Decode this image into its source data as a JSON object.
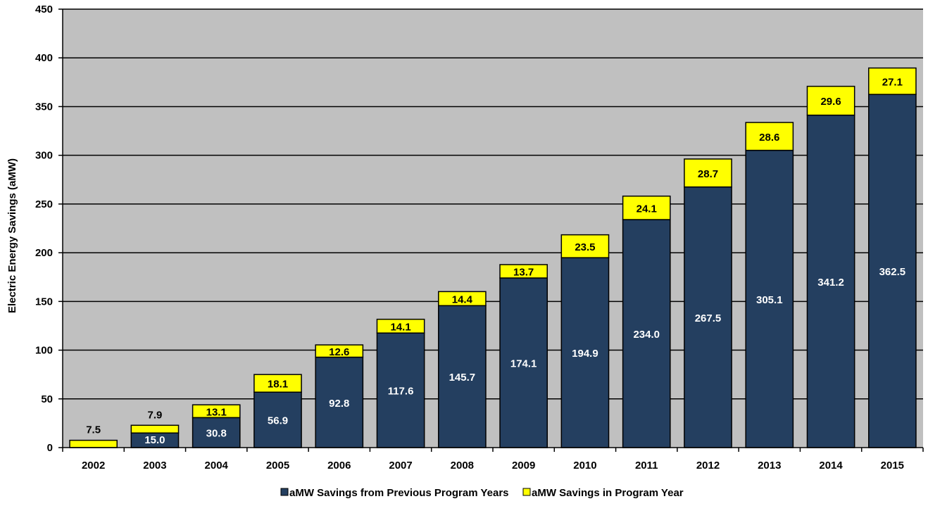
{
  "chart_data": {
    "type": "bar",
    "stacked": true,
    "ylabel": "Electric Energy Savings (aMW)",
    "ylim": [
      0,
      450
    ],
    "y_ticks": [
      0,
      50,
      100,
      150,
      200,
      250,
      300,
      350,
      400,
      450
    ],
    "grid": true,
    "legend_position": "bottom",
    "categories": [
      "2002",
      "2003",
      "2004",
      "2005",
      "2006",
      "2007",
      "2008",
      "2009",
      "2010",
      "2011",
      "2012",
      "2013",
      "2014",
      "2015"
    ],
    "series": [
      {
        "name": "aMW Savings from Previous Program Years",
        "color": "#243f60",
        "values": [
          0,
          15.0,
          30.8,
          56.9,
          92.8,
          117.6,
          145.7,
          174.1,
          194.9,
          234.0,
          267.5,
          305.1,
          341.2,
          362.5
        ],
        "labels": [
          "",
          "15.0",
          "30.8",
          "56.9",
          "92.8",
          "117.6",
          "145.7",
          "174.1",
          "194.9",
          "234.0",
          "267.5",
          "305.1",
          "341.2",
          "362.5"
        ]
      },
      {
        "name": "aMW Savings in Program Year",
        "color": "#ffff00",
        "values": [
          7.5,
          7.9,
          13.1,
          18.1,
          12.6,
          14.1,
          14.4,
          13.7,
          23.5,
          24.1,
          28.7,
          28.6,
          29.6,
          27.1
        ],
        "labels": [
          "7.5",
          "7.9",
          "13.1",
          "18.1",
          "12.6",
          "14.1",
          "14.4",
          "13.7",
          "23.5",
          "24.1",
          "28.7",
          "28.6",
          "29.6",
          "27.1"
        ]
      }
    ],
    "plot_background": "#c0c0c0"
  }
}
